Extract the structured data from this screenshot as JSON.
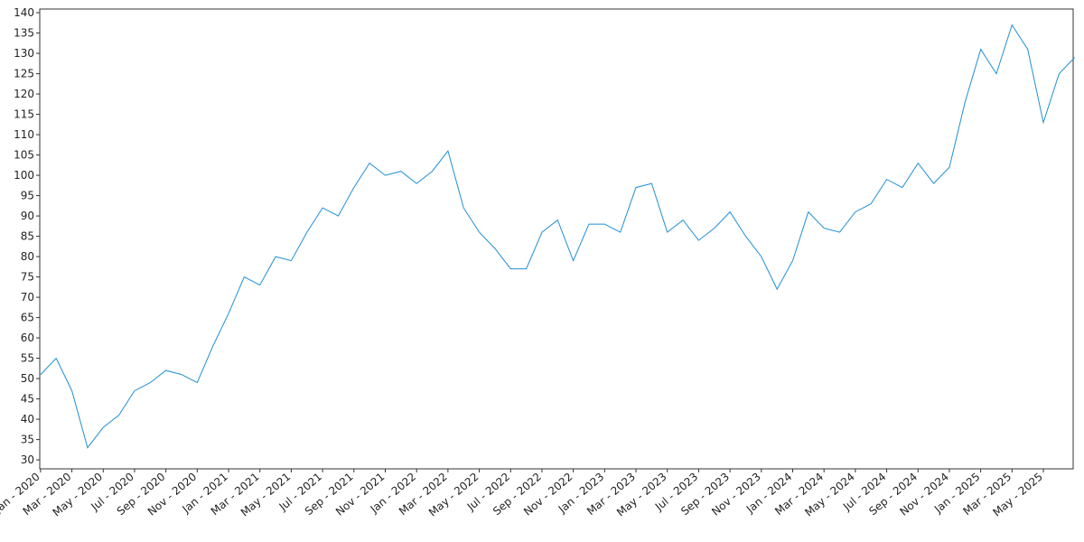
{
  "chart_data": {
    "type": "line",
    "x": [
      "2020-01",
      "2020-02",
      "2020-03",
      "2020-04",
      "2020-05",
      "2020-06",
      "2020-07",
      "2020-08",
      "2020-09",
      "2020-10",
      "2020-11",
      "2020-12",
      "2021-01",
      "2021-02",
      "2021-03",
      "2021-04",
      "2021-05",
      "2021-06",
      "2021-07",
      "2021-08",
      "2021-09",
      "2021-10",
      "2021-11",
      "2021-12",
      "2022-01",
      "2022-02",
      "2022-03",
      "2022-04",
      "2022-05",
      "2022-06",
      "2022-07",
      "2022-08",
      "2022-09",
      "2022-10",
      "2022-11",
      "2022-12",
      "2023-01",
      "2023-02",
      "2023-03",
      "2023-04",
      "2023-05",
      "2023-06",
      "2023-07",
      "2023-08",
      "2023-09",
      "2023-10",
      "2023-11",
      "2023-12",
      "2024-01",
      "2024-02",
      "2024-03",
      "2024-04",
      "2024-05",
      "2024-06",
      "2024-07",
      "2024-08",
      "2024-09",
      "2024-10",
      "2024-11",
      "2024-12",
      "2025-01",
      "2025-02",
      "2025-03",
      "2025-04",
      "2025-05",
      "2025-06",
      "2025-07"
    ],
    "series": [
      {
        "color": "#1f8fd6",
        "values": [
          51,
          55,
          47,
          33,
          38,
          41,
          47,
          49,
          52,
          51,
          49,
          58,
          66,
          75,
          73,
          80,
          79,
          86,
          92,
          90,
          97,
          103,
          100,
          101,
          98,
          101,
          106,
          92,
          86,
          82,
          77,
          77,
          86,
          89,
          79,
          88,
          88,
          86,
          97,
          98,
          86,
          89,
          84,
          87,
          91,
          85,
          80,
          72,
          79,
          91,
          87,
          86,
          91,
          93,
          99,
          97,
          103,
          98,
          102,
          118,
          131,
          125,
          137,
          131,
          113,
          125,
          129
        ]
      }
    ],
    "xlim": [
      "2020-01",
      "2025-07"
    ],
    "ylim": [
      27.8,
      140.9
    ],
    "yticks": [
      30,
      35,
      40,
      45,
      50,
      55,
      60,
      65,
      70,
      75,
      80,
      85,
      90,
      95,
      100,
      105,
      110,
      115,
      120,
      125,
      130,
      135,
      140
    ],
    "xticks": [
      {
        "value": "2020-01",
        "label": "Jan - 2020"
      },
      {
        "value": "2020-03",
        "label": "Mar - 2020"
      },
      {
        "value": "2020-05",
        "label": "May - 2020"
      },
      {
        "value": "2020-07",
        "label": "Jul - 2020"
      },
      {
        "value": "2020-09",
        "label": "Sep - 2020"
      },
      {
        "value": "2020-11",
        "label": "Nov - 2020"
      },
      {
        "value": "2021-01",
        "label": "Jan - 2021"
      },
      {
        "value": "2021-03",
        "label": "Mar - 2021"
      },
      {
        "value": "2021-05",
        "label": "May - 2021"
      },
      {
        "value": "2021-07",
        "label": "Jul - 2021"
      },
      {
        "value": "2021-09",
        "label": "Sep - 2021"
      },
      {
        "value": "2021-11",
        "label": "Nov - 2021"
      },
      {
        "value": "2022-01",
        "label": "Jan - 2022"
      },
      {
        "value": "2022-03",
        "label": "Mar - 2022"
      },
      {
        "value": "2022-05",
        "label": "May - 2022"
      },
      {
        "value": "2022-07",
        "label": "Jul - 2022"
      },
      {
        "value": "2022-09",
        "label": "Sep - 2022"
      },
      {
        "value": "2022-11",
        "label": "Nov - 2022"
      },
      {
        "value": "2023-01",
        "label": "Jan - 2023"
      },
      {
        "value": "2023-03",
        "label": "Mar - 2023"
      },
      {
        "value": "2023-05",
        "label": "May - 2023"
      },
      {
        "value": "2023-07",
        "label": "Jul - 2023"
      },
      {
        "value": "2023-09",
        "label": "Sep - 2023"
      },
      {
        "value": "2023-11",
        "label": "Nov - 2023"
      },
      {
        "value": "2024-01",
        "label": "Jan - 2024"
      },
      {
        "value": "2024-03",
        "label": "Mar - 2024"
      },
      {
        "value": "2024-05",
        "label": "May - 2024"
      },
      {
        "value": "2024-07",
        "label": "Jul - 2024"
      },
      {
        "value": "2024-09",
        "label": "Sep - 2024"
      },
      {
        "value": "2024-11",
        "label": "Nov - 2024"
      },
      {
        "value": "2025-01",
        "label": "Jan - 2025"
      },
      {
        "value": "2025-03",
        "label": "Mar - 2025"
      },
      {
        "value": "2025-05",
        "label": "May - 2025"
      }
    ]
  }
}
